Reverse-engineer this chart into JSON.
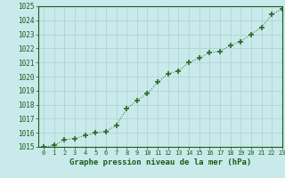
{
  "x": [
    0,
    1,
    2,
    3,
    4,
    5,
    6,
    7,
    8,
    9,
    10,
    11,
    12,
    13,
    14,
    15,
    16,
    17,
    18,
    19,
    20,
    21,
    22,
    23
  ],
  "y": [
    1015.0,
    1015.1,
    1015.5,
    1015.6,
    1015.8,
    1016.0,
    1016.1,
    1016.5,
    1017.7,
    1018.3,
    1018.8,
    1019.6,
    1020.2,
    1020.4,
    1021.0,
    1021.3,
    1021.7,
    1021.8,
    1022.2,
    1022.5,
    1023.0,
    1023.5,
    1024.4,
    1024.8
  ],
  "line_color": "#2d6a2d",
  "marker_color": "#2d6a2d",
  "bg_color": "#c8eaea",
  "grid_color": "#b0d0d0",
  "text_color": "#1a5c1a",
  "xlabel": "Graphe pression niveau de la mer (hPa)",
  "ylim_min": 1015,
  "ylim_max": 1025,
  "xlim_min": -0.5,
  "xlim_max": 23,
  "xticks": [
    0,
    1,
    2,
    3,
    4,
    5,
    6,
    7,
    8,
    9,
    10,
    11,
    12,
    13,
    14,
    15,
    16,
    17,
    18,
    19,
    20,
    21,
    22,
    23
  ],
  "yticks": [
    1015,
    1016,
    1017,
    1018,
    1019,
    1020,
    1021,
    1022,
    1023,
    1024,
    1025
  ]
}
